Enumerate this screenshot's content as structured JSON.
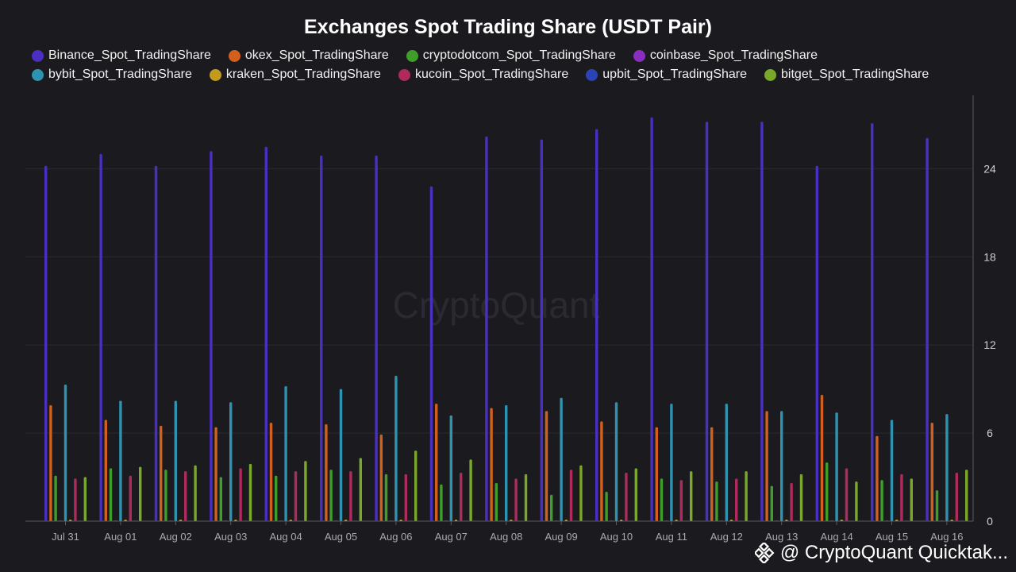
{
  "chart_data": {
    "type": "bar",
    "title": "Exchanges Spot Trading Share (USDT Pair)",
    "xlabel": "",
    "ylabel": "",
    "categories": [
      "Jul 31",
      "Aug 01",
      "Aug 02",
      "Aug 03",
      "Aug 04",
      "Aug 05",
      "Aug 06",
      "Aug 07",
      "Aug 08",
      "Aug 09",
      "Aug 10",
      "Aug 11",
      "Aug 12",
      "Aug 13",
      "Aug 14",
      "Aug 15",
      "Aug 16"
    ],
    "ylim": [
      0,
      29
    ],
    "yticks": [
      0,
      6,
      12,
      18,
      24
    ],
    "y_axis_position": "right",
    "grid": true,
    "legend_position": "top",
    "series": [
      {
        "name": "Binance_Spot_TradingShare",
        "color": "#4b2ec2",
        "values": [
          24.2,
          25.0,
          24.2,
          25.2,
          25.5,
          24.9,
          24.9,
          22.8,
          26.2,
          26.0,
          26.7,
          27.5,
          27.2,
          27.2,
          24.2,
          27.1,
          26.1
        ]
      },
      {
        "name": "okex_Spot_TradingShare",
        "color": "#d35f1c",
        "values": [
          7.9,
          6.9,
          6.5,
          6.4,
          6.7,
          6.6,
          5.9,
          8.0,
          7.7,
          7.5,
          6.8,
          6.4,
          6.4,
          7.5,
          8.6,
          5.8,
          6.7
        ]
      },
      {
        "name": "cryptodotcom_Spot_TradingShare",
        "color": "#3f9e2a",
        "values": [
          3.1,
          3.6,
          3.5,
          3.0,
          3.1,
          3.5,
          3.2,
          2.5,
          2.6,
          1.8,
          2.0,
          2.9,
          2.7,
          2.4,
          4.0,
          2.8,
          2.1
        ]
      },
      {
        "name": "coinbase_Spot_TradingShare",
        "color": "#8a2ec2",
        "values": [
          0.05,
          0.05,
          0.05,
          0.05,
          0.05,
          0.05,
          0.05,
          0.05,
          0.05,
          0.05,
          0.05,
          0.05,
          0.05,
          0.05,
          0.05,
          0.05,
          0.05
        ]
      },
      {
        "name": "bybit_Spot_TradingShare",
        "color": "#2e93b0",
        "values": [
          9.3,
          8.2,
          8.2,
          8.1,
          9.2,
          9.0,
          9.9,
          7.2,
          7.9,
          8.4,
          8.1,
          8.0,
          8.0,
          7.5,
          7.4,
          6.9,
          7.3
        ]
      },
      {
        "name": "kraken_Spot_TradingShare",
        "color": "#c49a1e",
        "values": [
          0.1,
          0.1,
          0.1,
          0.1,
          0.1,
          0.1,
          0.1,
          0.1,
          0.1,
          0.1,
          0.1,
          0.1,
          0.1,
          0.1,
          0.1,
          0.1,
          0.1
        ]
      },
      {
        "name": "kucoin_Spot_TradingShare",
        "color": "#b02a5e",
        "values": [
          2.9,
          3.1,
          3.4,
          3.6,
          3.4,
          3.4,
          3.2,
          3.3,
          2.9,
          3.5,
          3.3,
          2.8,
          2.9,
          2.6,
          3.6,
          3.2,
          3.3
        ]
      },
      {
        "name": "upbit_Spot_TradingShare",
        "color": "#2a44b8",
        "values": [
          0.05,
          0.05,
          0.05,
          0.05,
          0.05,
          0.05,
          0.05,
          0.05,
          0.05,
          0.05,
          0.05,
          0.05,
          0.05,
          0.05,
          0.05,
          0.05,
          0.05
        ]
      },
      {
        "name": "bitget_Spot_TradingShare",
        "color": "#79a82a",
        "values": [
          3.0,
          3.7,
          3.8,
          3.9,
          4.1,
          4.3,
          4.8,
          4.2,
          3.2,
          3.8,
          3.6,
          3.4,
          3.4,
          3.2,
          2.7,
          2.9,
          3.5
        ]
      }
    ]
  },
  "watermark": "CryptoQuant",
  "author": {
    "text": "@ CryptoQuant Quicktak...",
    "logo_icon": "binance-square-icon"
  },
  "colors": {
    "background": "#1b1b1f",
    "grid": "#2b2b31",
    "axis": "#5a5a62"
  }
}
